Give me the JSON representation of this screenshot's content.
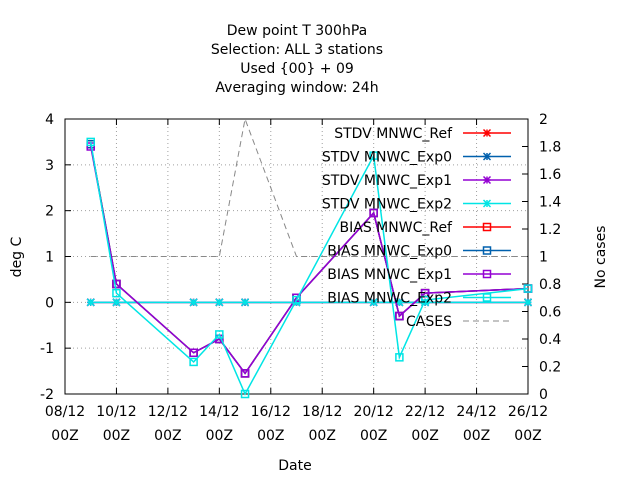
{
  "chart_data": {
    "type": "line",
    "title_lines": [
      "Dew point T 300hPa",
      "Selection: ALL      3 stations",
      "Used {00} + 09",
      "Averaging window: 24h"
    ],
    "xlabel": "Date",
    "ylabel": "deg C",
    "y2label": "No cases",
    "xlim": [
      8,
      26
    ],
    "ylim": [
      -2,
      4
    ],
    "y2lim": [
      0,
      2
    ],
    "x_ticks": [
      {
        "x": 8,
        "line1": "08/12",
        "line2": "00Z"
      },
      {
        "x": 10,
        "line1": "10/12",
        "line2": "00Z"
      },
      {
        "x": 12,
        "line1": "12/12",
        "line2": "00Z"
      },
      {
        "x": 14,
        "line1": "14/12",
        "line2": "00Z"
      },
      {
        "x": 16,
        "line1": "16/12",
        "line2": "00Z"
      },
      {
        "x": 18,
        "line1": "18/12",
        "line2": "00Z"
      },
      {
        "x": 20,
        "line1": "20/12",
        "line2": "00Z"
      },
      {
        "x": 22,
        "line1": "22/12",
        "line2": "00Z"
      },
      {
        "x": 24,
        "line1": "24/12",
        "line2": "00Z"
      },
      {
        "x": 26,
        "line1": "26/12",
        "line2": "00Z"
      }
    ],
    "y_ticks": [
      {
        "v": -2,
        "label": "-2"
      },
      {
        "v": -1,
        "label": "-1"
      },
      {
        "v": 0,
        "label": "0"
      },
      {
        "v": 1,
        "label": "1"
      },
      {
        "v": 2,
        "label": "2"
      },
      {
        "v": 3,
        "label": "3"
      },
      {
        "v": 4,
        "label": "4"
      }
    ],
    "y2_ticks": [
      {
        "v": 0,
        "label": "0"
      },
      {
        "v": 0.2,
        "label": "0.2"
      },
      {
        "v": 0.4,
        "label": "0.4"
      },
      {
        "v": 0.6,
        "label": "0.6"
      },
      {
        "v": 0.8,
        "label": "0.8"
      },
      {
        "v": 1,
        "label": "1"
      },
      {
        "v": 1.2,
        "label": "1.2"
      },
      {
        "v": 1.4,
        "label": "1.4"
      },
      {
        "v": 1.6,
        "label": "1.6"
      },
      {
        "v": 1.8,
        "label": "1.8"
      },
      {
        "v": 2,
        "label": "2"
      }
    ],
    "grid": true,
    "legend_position": "top-right",
    "x": [
      9,
      10,
      13,
      14,
      15,
      17,
      20,
      21,
      22,
      26
    ],
    "series": [
      {
        "name": "STDV MNWC_Ref",
        "color": "#ff0000",
        "marker": "x",
        "axis": "y",
        "values": [
          0,
          0,
          0,
          0,
          0,
          0,
          0,
          0,
          0,
          0
        ]
      },
      {
        "name": "STDV MNWC_Exp0",
        "color": "#0060ad",
        "marker": "x",
        "axis": "y",
        "values": [
          0,
          0,
          0,
          0,
          0,
          0,
          0,
          0,
          0,
          0
        ]
      },
      {
        "name": "STDV MNWC_Exp1",
        "color": "#9400d3",
        "marker": "x",
        "axis": "y",
        "values": [
          0,
          0,
          0,
          0,
          0,
          0,
          0,
          0,
          0,
          0
        ]
      },
      {
        "name": "STDV MNWC_Exp2",
        "color": "#00e5e5",
        "marker": "x",
        "axis": "y",
        "values": [
          0,
          0,
          0,
          0,
          0,
          0,
          0,
          0,
          0,
          0
        ]
      },
      {
        "name": "BIAS MNWC_Ref",
        "color": "#ff0000",
        "marker": "square",
        "axis": "y",
        "values": [
          3.45,
          0.4,
          -1.1,
          -0.8,
          -1.55,
          0.1,
          1.95,
          -0.3,
          0.2,
          0.3
        ]
      },
      {
        "name": "BIAS MNWC_Exp0",
        "color": "#0060ad",
        "marker": "square",
        "axis": "y",
        "values": [
          3.45,
          0.4,
          -1.1,
          -0.8,
          -1.55,
          0.1,
          1.95,
          -0.3,
          0.2,
          0.3
        ]
      },
      {
        "name": "BIAS MNWC_Exp1",
        "color": "#9400d3",
        "marker": "square",
        "axis": "y",
        "values": [
          3.4,
          0.4,
          -1.1,
          -0.8,
          -1.55,
          0.1,
          1.95,
          -0.3,
          0.2,
          0.3
        ]
      },
      {
        "name": "BIAS MNWC_Exp2",
        "color": "#00e5e5",
        "marker": "square",
        "axis": "y",
        "values": [
          3.5,
          0.2,
          -1.3,
          -0.7,
          -2.0,
          0.05,
          3.2,
          -1.2,
          0.05,
          0.3
        ]
      },
      {
        "name": "CASES",
        "color": "#888888",
        "marker": "none",
        "dashed": true,
        "axis": "y2",
        "values": [
          1,
          1,
          1,
          1,
          2,
          1,
          1,
          1,
          1,
          1
        ]
      }
    ]
  }
}
